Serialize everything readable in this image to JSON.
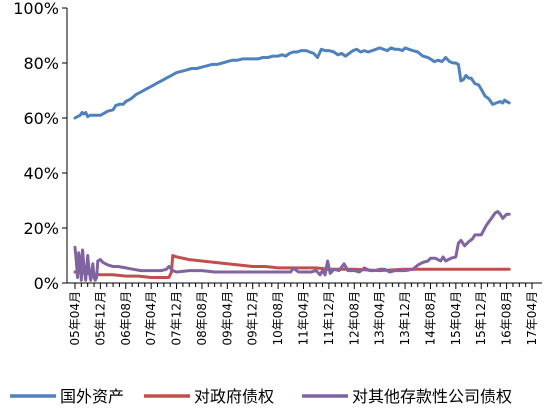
{
  "chart_data": {
    "type": "line",
    "x_ticks": [
      "05年04月",
      "05年12月",
      "06年08月",
      "07年04月",
      "07年12月",
      "08年08月",
      "09年04月",
      "09年12月",
      "10年08月",
      "11年04月",
      "11年12月",
      "12年08月",
      "13年04月",
      "13年12月",
      "14年08月",
      "15年04月",
      "15年12月",
      "16年08月",
      "17年04月"
    ],
    "y_ticks": [
      "0%",
      "20%",
      "40%",
      "60%",
      "80%",
      "100%"
    ],
    "ylim": [
      0,
      100
    ],
    "legend_position": "bottom",
    "grid": false,
    "series": [
      {
        "name": "国外资产",
        "color": "#4F81BD",
        "values": [
          [
            0,
            60
          ],
          [
            0.1,
            60.5
          ],
          [
            0.2,
            61
          ],
          [
            0.28,
            62
          ],
          [
            0.35,
            61.5
          ],
          [
            0.42,
            62
          ],
          [
            0.5,
            60.5
          ],
          [
            0.6,
            61
          ],
          [
            0.75,
            61
          ],
          [
            1,
            61
          ],
          [
            1.1,
            61.5
          ],
          [
            1.3,
            62.5
          ],
          [
            1.5,
            63
          ],
          [
            1.6,
            64.5
          ],
          [
            1.75,
            65
          ],
          [
            1.9,
            65
          ],
          [
            2,
            66
          ],
          [
            2.2,
            67
          ],
          [
            2.4,
            68.5
          ],
          [
            2.6,
            69.5
          ],
          [
            2.8,
            70.5
          ],
          [
            3,
            71.5
          ],
          [
            3.2,
            72.5
          ],
          [
            3.4,
            73.5
          ],
          [
            3.6,
            74.5
          ],
          [
            3.8,
            75.5
          ],
          [
            4,
            76.5
          ],
          [
            4.2,
            77
          ],
          [
            4.4,
            77.5
          ],
          [
            4.6,
            78
          ],
          [
            4.8,
            78
          ],
          [
            5,
            78.5
          ],
          [
            5.2,
            79
          ],
          [
            5.4,
            79.5
          ],
          [
            5.6,
            79.5
          ],
          [
            5.8,
            80
          ],
          [
            6,
            80.5
          ],
          [
            6.2,
            81
          ],
          [
            6.4,
            81
          ],
          [
            6.6,
            81.5
          ],
          [
            6.8,
            81.5
          ],
          [
            7,
            81.5
          ],
          [
            7.2,
            81.5
          ],
          [
            7.4,
            82
          ],
          [
            7.6,
            82
          ],
          [
            7.8,
            82.5
          ],
          [
            8,
            82.5
          ],
          [
            8.15,
            83
          ],
          [
            8.3,
            82.5
          ],
          [
            8.45,
            83.5
          ],
          [
            8.6,
            84
          ],
          [
            8.75,
            84
          ],
          [
            8.9,
            84.5
          ],
          [
            9,
            84.5
          ],
          [
            9.1,
            84.5
          ],
          [
            9.25,
            84
          ],
          [
            9.4,
            83.5
          ],
          [
            9.55,
            82
          ],
          [
            9.7,
            85
          ],
          [
            9.85,
            84.5
          ],
          [
            10,
            84.5
          ],
          [
            10.2,
            84
          ],
          [
            10.35,
            83
          ],
          [
            10.5,
            83.5
          ],
          [
            10.65,
            82.5
          ],
          [
            10.8,
            83.5
          ],
          [
            10.95,
            84.5
          ],
          [
            11.1,
            85
          ],
          [
            11.25,
            84
          ],
          [
            11.4,
            84.5
          ],
          [
            11.55,
            84
          ],
          [
            11.7,
            84.5
          ],
          [
            11.85,
            85
          ],
          [
            12,
            85.5
          ],
          [
            12.15,
            85
          ],
          [
            12.3,
            84.5
          ],
          [
            12.45,
            85.5
          ],
          [
            12.6,
            85
          ],
          [
            12.75,
            85
          ],
          [
            12.9,
            84.5
          ],
          [
            13,
            85.5
          ],
          [
            13.15,
            85
          ],
          [
            13.3,
            84.5
          ],
          [
            13.5,
            84
          ],
          [
            13.7,
            82.5
          ],
          [
            13.9,
            82
          ],
          [
            14,
            81.5
          ],
          [
            14.15,
            80.5
          ],
          [
            14.3,
            81
          ],
          [
            14.45,
            80.5
          ],
          [
            14.6,
            82
          ],
          [
            14.75,
            80.5
          ],
          [
            14.9,
            80
          ],
          [
            15,
            80
          ],
          [
            15.1,
            79.5
          ],
          [
            15.2,
            73.5
          ],
          [
            15.3,
            74
          ],
          [
            15.4,
            75.5
          ],
          [
            15.5,
            74.5
          ],
          [
            15.6,
            74.5
          ],
          [
            15.75,
            72.5
          ],
          [
            15.9,
            72
          ],
          [
            16,
            70.5
          ],
          [
            16.15,
            68
          ],
          [
            16.3,
            67
          ],
          [
            16.45,
            65
          ],
          [
            16.6,
            65.5
          ],
          [
            16.75,
            66
          ],
          [
            16.85,
            65.5
          ],
          [
            16.92,
            66.5
          ],
          [
            17,
            66
          ],
          [
            17.1,
            65.5
          ]
        ]
      },
      {
        "name": "对政府债权",
        "color": "#C0504D",
        "values": [
          [
            0,
            4
          ],
          [
            0.5,
            3.5
          ],
          [
            1,
            3
          ],
          [
            1.5,
            3
          ],
          [
            2,
            2.5
          ],
          [
            2.5,
            2.5
          ],
          [
            3,
            2
          ],
          [
            3.5,
            2
          ],
          [
            3.7,
            2
          ],
          [
            3.8,
            4
          ],
          [
            3.85,
            10
          ],
          [
            4,
            9.5
          ],
          [
            4.5,
            8.5
          ],
          [
            5,
            8
          ],
          [
            5.5,
            7.5
          ],
          [
            6,
            7
          ],
          [
            6.5,
            6.5
          ],
          [
            7,
            6
          ],
          [
            7.5,
            6
          ],
          [
            8,
            5.5
          ],
          [
            8.5,
            5.5
          ],
          [
            9,
            5.5
          ],
          [
            9.5,
            5.5
          ],
          [
            10,
            5
          ],
          [
            11,
            5
          ],
          [
            12,
            4.5
          ],
          [
            13,
            5
          ],
          [
            14,
            5
          ],
          [
            15,
            5
          ],
          [
            15.5,
            5
          ],
          [
            16,
            5
          ],
          [
            16.5,
            5
          ],
          [
            17,
            5
          ],
          [
            17.1,
            5
          ]
        ]
      },
      {
        "name": "对其他存款性公司债权",
        "color": "#8064A2",
        "values": [
          [
            0,
            13
          ],
          [
            0.05,
            8
          ],
          [
            0.1,
            2
          ],
          [
            0.15,
            11
          ],
          [
            0.2,
            8
          ],
          [
            0.25,
            1
          ],
          [
            0.3,
            12
          ],
          [
            0.35,
            6
          ],
          [
            0.42,
            1
          ],
          [
            0.5,
            10
          ],
          [
            0.55,
            5
          ],
          [
            0.62,
            1
          ],
          [
            0.7,
            7
          ],
          [
            0.75,
            2
          ],
          [
            0.8,
            1
          ],
          [
            0.85,
            2
          ],
          [
            0.9,
            8
          ],
          [
            1,
            8.5
          ],
          [
            1.1,
            7.5
          ],
          [
            1.3,
            6.5
          ],
          [
            1.5,
            6
          ],
          [
            1.7,
            6
          ],
          [
            2,
            5.5
          ],
          [
            2.3,
            5
          ],
          [
            2.6,
            4.5
          ],
          [
            3,
            4.5
          ],
          [
            3.4,
            4.5
          ],
          [
            3.6,
            5
          ],
          [
            3.7,
            6
          ],
          [
            3.85,
            4.5
          ],
          [
            4,
            4
          ],
          [
            4.5,
            4.5
          ],
          [
            5,
            4.5
          ],
          [
            5.5,
            4
          ],
          [
            6,
            4
          ],
          [
            6.5,
            4
          ],
          [
            7,
            4
          ],
          [
            7.5,
            4
          ],
          [
            8,
            4
          ],
          [
            8.5,
            4
          ],
          [
            8.6,
            5.5
          ],
          [
            8.8,
            4
          ],
          [
            9,
            4
          ],
          [
            9.3,
            4
          ],
          [
            9.5,
            4.5
          ],
          [
            9.65,
            3
          ],
          [
            9.75,
            4.5
          ],
          [
            9.85,
            3
          ],
          [
            9.95,
            8
          ],
          [
            10.05,
            3.5
          ],
          [
            10.2,
            5
          ],
          [
            10.4,
            4.5
          ],
          [
            10.6,
            7
          ],
          [
            10.75,
            4.5
          ],
          [
            11,
            4.5
          ],
          [
            11.2,
            4
          ],
          [
            11.4,
            5.5
          ],
          [
            11.6,
            4.5
          ],
          [
            11.8,
            4.5
          ],
          [
            12,
            5
          ],
          [
            12.2,
            5
          ],
          [
            12.4,
            4
          ],
          [
            12.6,
            4.5
          ],
          [
            12.8,
            4.5
          ],
          [
            13,
            4.5
          ],
          [
            13.3,
            5
          ],
          [
            13.5,
            6.5
          ],
          [
            13.7,
            7.5
          ],
          [
            13.9,
            8
          ],
          [
            14,
            9
          ],
          [
            14.2,
            9
          ],
          [
            14.4,
            8
          ],
          [
            14.5,
            9.5
          ],
          [
            14.6,
            8
          ],
          [
            14.8,
            9
          ],
          [
            15,
            9.5
          ],
          [
            15.1,
            14.5
          ],
          [
            15.2,
            15.5
          ],
          [
            15.35,
            13.5
          ],
          [
            15.5,
            15
          ],
          [
            15.65,
            16
          ],
          [
            15.75,
            17.5
          ],
          [
            16,
            17.5
          ],
          [
            16.2,
            21
          ],
          [
            16.4,
            23.5
          ],
          [
            16.55,
            25.5
          ],
          [
            16.65,
            26
          ],
          [
            16.75,
            25
          ],
          [
            16.85,
            23.5
          ],
          [
            16.95,
            24.5
          ],
          [
            17,
            25
          ],
          [
            17.1,
            25
          ]
        ]
      }
    ]
  }
}
